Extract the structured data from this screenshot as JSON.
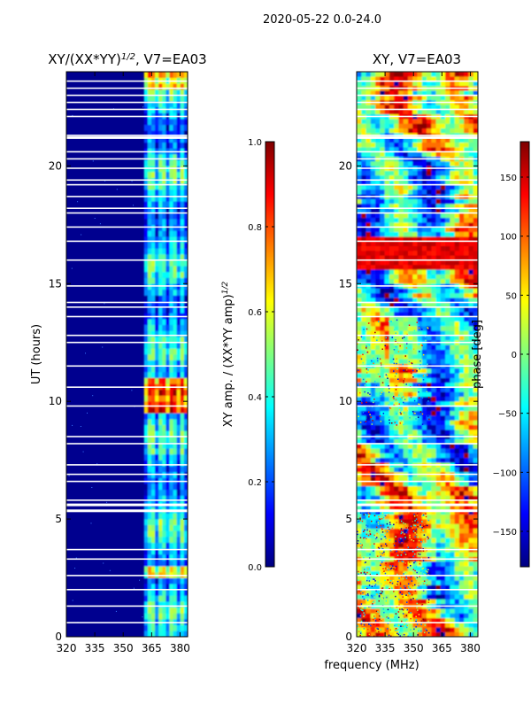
{
  "figure": {
    "title": "2020-05-22 0.0-24.0"
  },
  "colors": {
    "panel_background": "#00008f",
    "gap_white": "#ffffff",
    "jet": [
      "#00007f",
      "#0000ff",
      "#007fff",
      "#00ffff",
      "#7fff7f",
      "#ffff00",
      "#ff7f00",
      "#ff0000",
      "#7f0000"
    ]
  },
  "chart_data": [
    {
      "type": "heatmap",
      "title": "XY/(XX*YY)",
      "title_exponent": "1/2",
      "title_suffix": ", V7=EA03",
      "xlabel": "",
      "ylabel": "UT (hours)",
      "xlim": [
        320,
        384
      ],
      "ylim": [
        0,
        24
      ],
      "x_ticks": [
        "320",
        "335",
        "350",
        "365",
        "380"
      ],
      "x_tick_values": [
        320,
        335,
        350,
        365,
        380
      ],
      "y_ticks": [
        "0",
        "5",
        "10",
        "15",
        "20"
      ],
      "y_tick_values": [
        0,
        5,
        10,
        15,
        20
      ],
      "active_band_mhz": [
        361,
        384
      ],
      "colorbar": {
        "label": "XY amp. / (XX*YY amp)",
        "label_exponent": "1/2",
        "ticks": [
          "0.0",
          "0.2",
          "0.4",
          "0.6",
          "0.8",
          "1.0"
        ],
        "tick_values": [
          0,
          0.2,
          0.4,
          0.6,
          0.8,
          1.0
        ],
        "range": [
          0,
          1
        ]
      }
    },
    {
      "type": "heatmap",
      "title": "XY, V7=EA03",
      "xlabel": "frequency (MHz)",
      "ylabel": "",
      "xlim": [
        320,
        384
      ],
      "ylim": [
        0,
        24
      ],
      "x_ticks": [
        "320",
        "335",
        "350",
        "365",
        "380"
      ],
      "x_tick_values": [
        320,
        335,
        350,
        365,
        380
      ],
      "y_ticks": [
        "0",
        "5",
        "10",
        "15",
        "20"
      ],
      "y_tick_values": [
        0,
        5,
        10,
        15,
        20
      ],
      "colorbar": {
        "label": "phase [deg]",
        "ticks": [
          "−150",
          "−100",
          "−50",
          "0",
          "50",
          "100",
          "150"
        ],
        "tick_values": [
          -150,
          -100,
          -50,
          0,
          50,
          100,
          150
        ],
        "range": [
          -180,
          180
        ]
      }
    }
  ],
  "flag_gaps_hours": [
    0.6,
    1.3,
    2.0,
    2.6,
    3.3,
    3.7,
    5.35,
    5.6,
    5.8,
    6.6,
    6.9,
    7.3,
    8.2,
    8.5,
    9.8,
    10.6,
    11.5,
    12.5,
    12.8,
    13.6,
    14.0,
    14.2,
    14.9,
    16.0,
    16.8,
    17.4,
    18.0,
    18.2,
    18.7,
    19.2,
    19.4,
    19.9,
    20.3,
    20.6,
    21.2,
    21.3,
    22.1,
    22.4,
    22.7,
    23.0,
    23.3,
    23.6
  ]
}
